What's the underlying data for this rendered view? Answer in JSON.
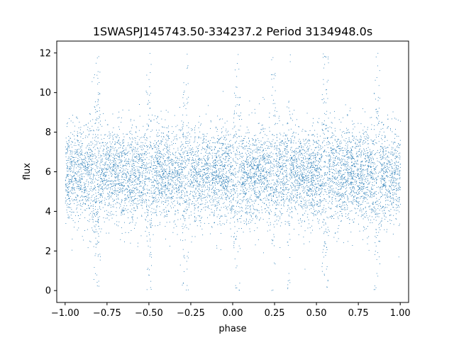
{
  "chart_data": {
    "type": "scatter",
    "title": "1SWASPJ145743.50-334237.2 Period 3134948.0s",
    "xlabel": "phase",
    "ylabel": "flux",
    "xlim": [
      -1.05,
      1.05
    ],
    "ylim": [
      -0.6,
      12.6
    ],
    "xticks": [
      -1.0,
      -0.75,
      -0.5,
      -0.25,
      0.0,
      0.25,
      0.5,
      0.75,
      1.0
    ],
    "xtick_labels": [
      "−1.00",
      "−0.75",
      "−0.50",
      "−0.25",
      "0.00",
      "0.25",
      "0.50",
      "0.75",
      "1.00"
    ],
    "yticks": [
      0,
      2,
      4,
      6,
      8,
      10,
      12
    ],
    "ytick_labels": [
      "0",
      "2",
      "4",
      "6",
      "8",
      "10",
      "12"
    ],
    "grid": false,
    "legend": "none",
    "marker_color": "#1f77b4",
    "series": [
      {
        "x_range": [
          -1.0,
          1.0
        ],
        "y_center": 5.9,
        "y_spread_typical": [
          4.5,
          7.3
        ],
        "y_extent": [
          0.0,
          12.0
        ],
        "point_count_approx": 20000
      }
    ]
  }
}
